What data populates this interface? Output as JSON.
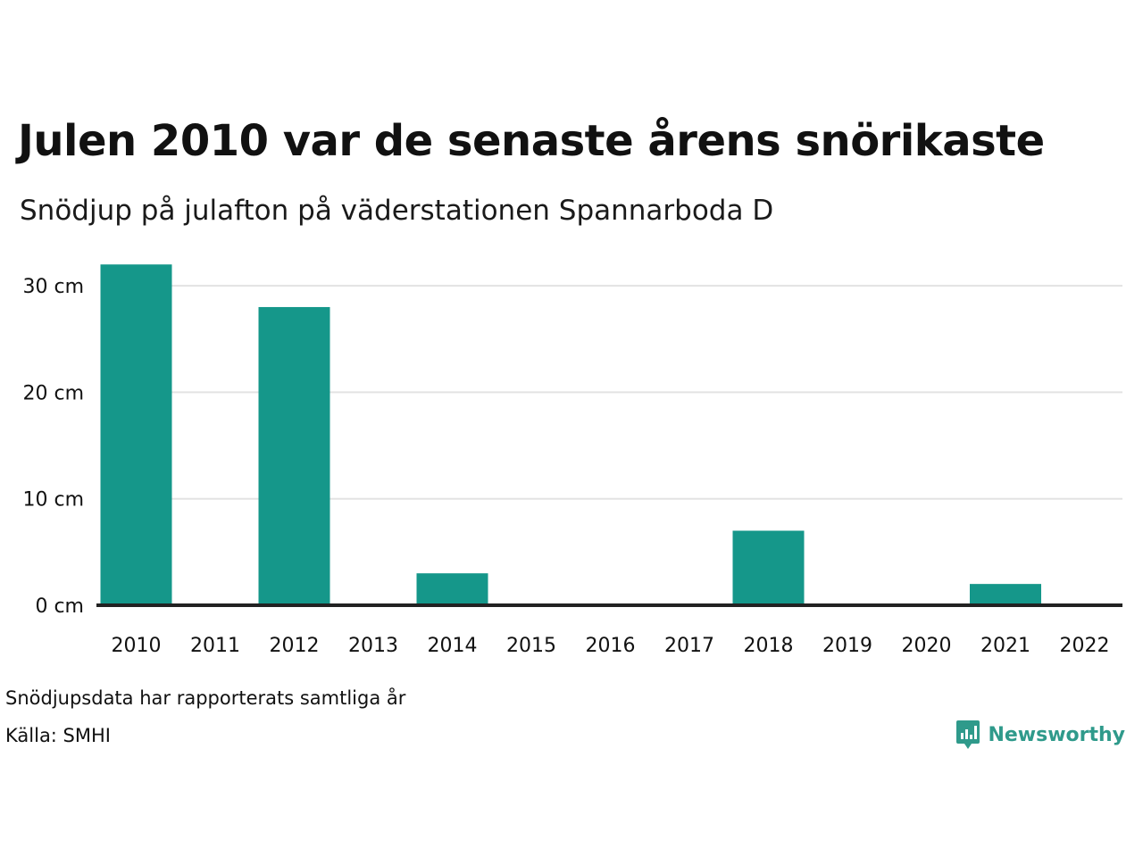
{
  "header": {
    "title": "Julen 2010 var de senaste årens snörikaste",
    "subtitle": "Snödjup på julafton på väderstationen Spannarboda D"
  },
  "footer": {
    "note": "Snödjupsdata har rapporterats samtliga år",
    "source": "Källa: SMHI",
    "brand": "Newsworthy",
    "brand_icon": "bar-chart-speech-bubble-icon"
  },
  "colors": {
    "bar": "#15978a",
    "grid": "#e3e3e3",
    "axis": "#222222",
    "brand": "#2f9a8b"
  },
  "chart_data": {
    "type": "bar",
    "categories": [
      "2010",
      "2011",
      "2012",
      "2013",
      "2014",
      "2015",
      "2016",
      "2017",
      "2018",
      "2019",
      "2020",
      "2021",
      "2022"
    ],
    "values": [
      32,
      0,
      28,
      0,
      3,
      0,
      0,
      0,
      7,
      0,
      0,
      2,
      0
    ],
    "ylim": [
      0,
      33
    ],
    "yticks": [
      0,
      10,
      20,
      30
    ],
    "ytick_labels": [
      "0 cm",
      "10 cm",
      "20 cm",
      "30 cm"
    ],
    "grid": true,
    "legend": "none"
  }
}
